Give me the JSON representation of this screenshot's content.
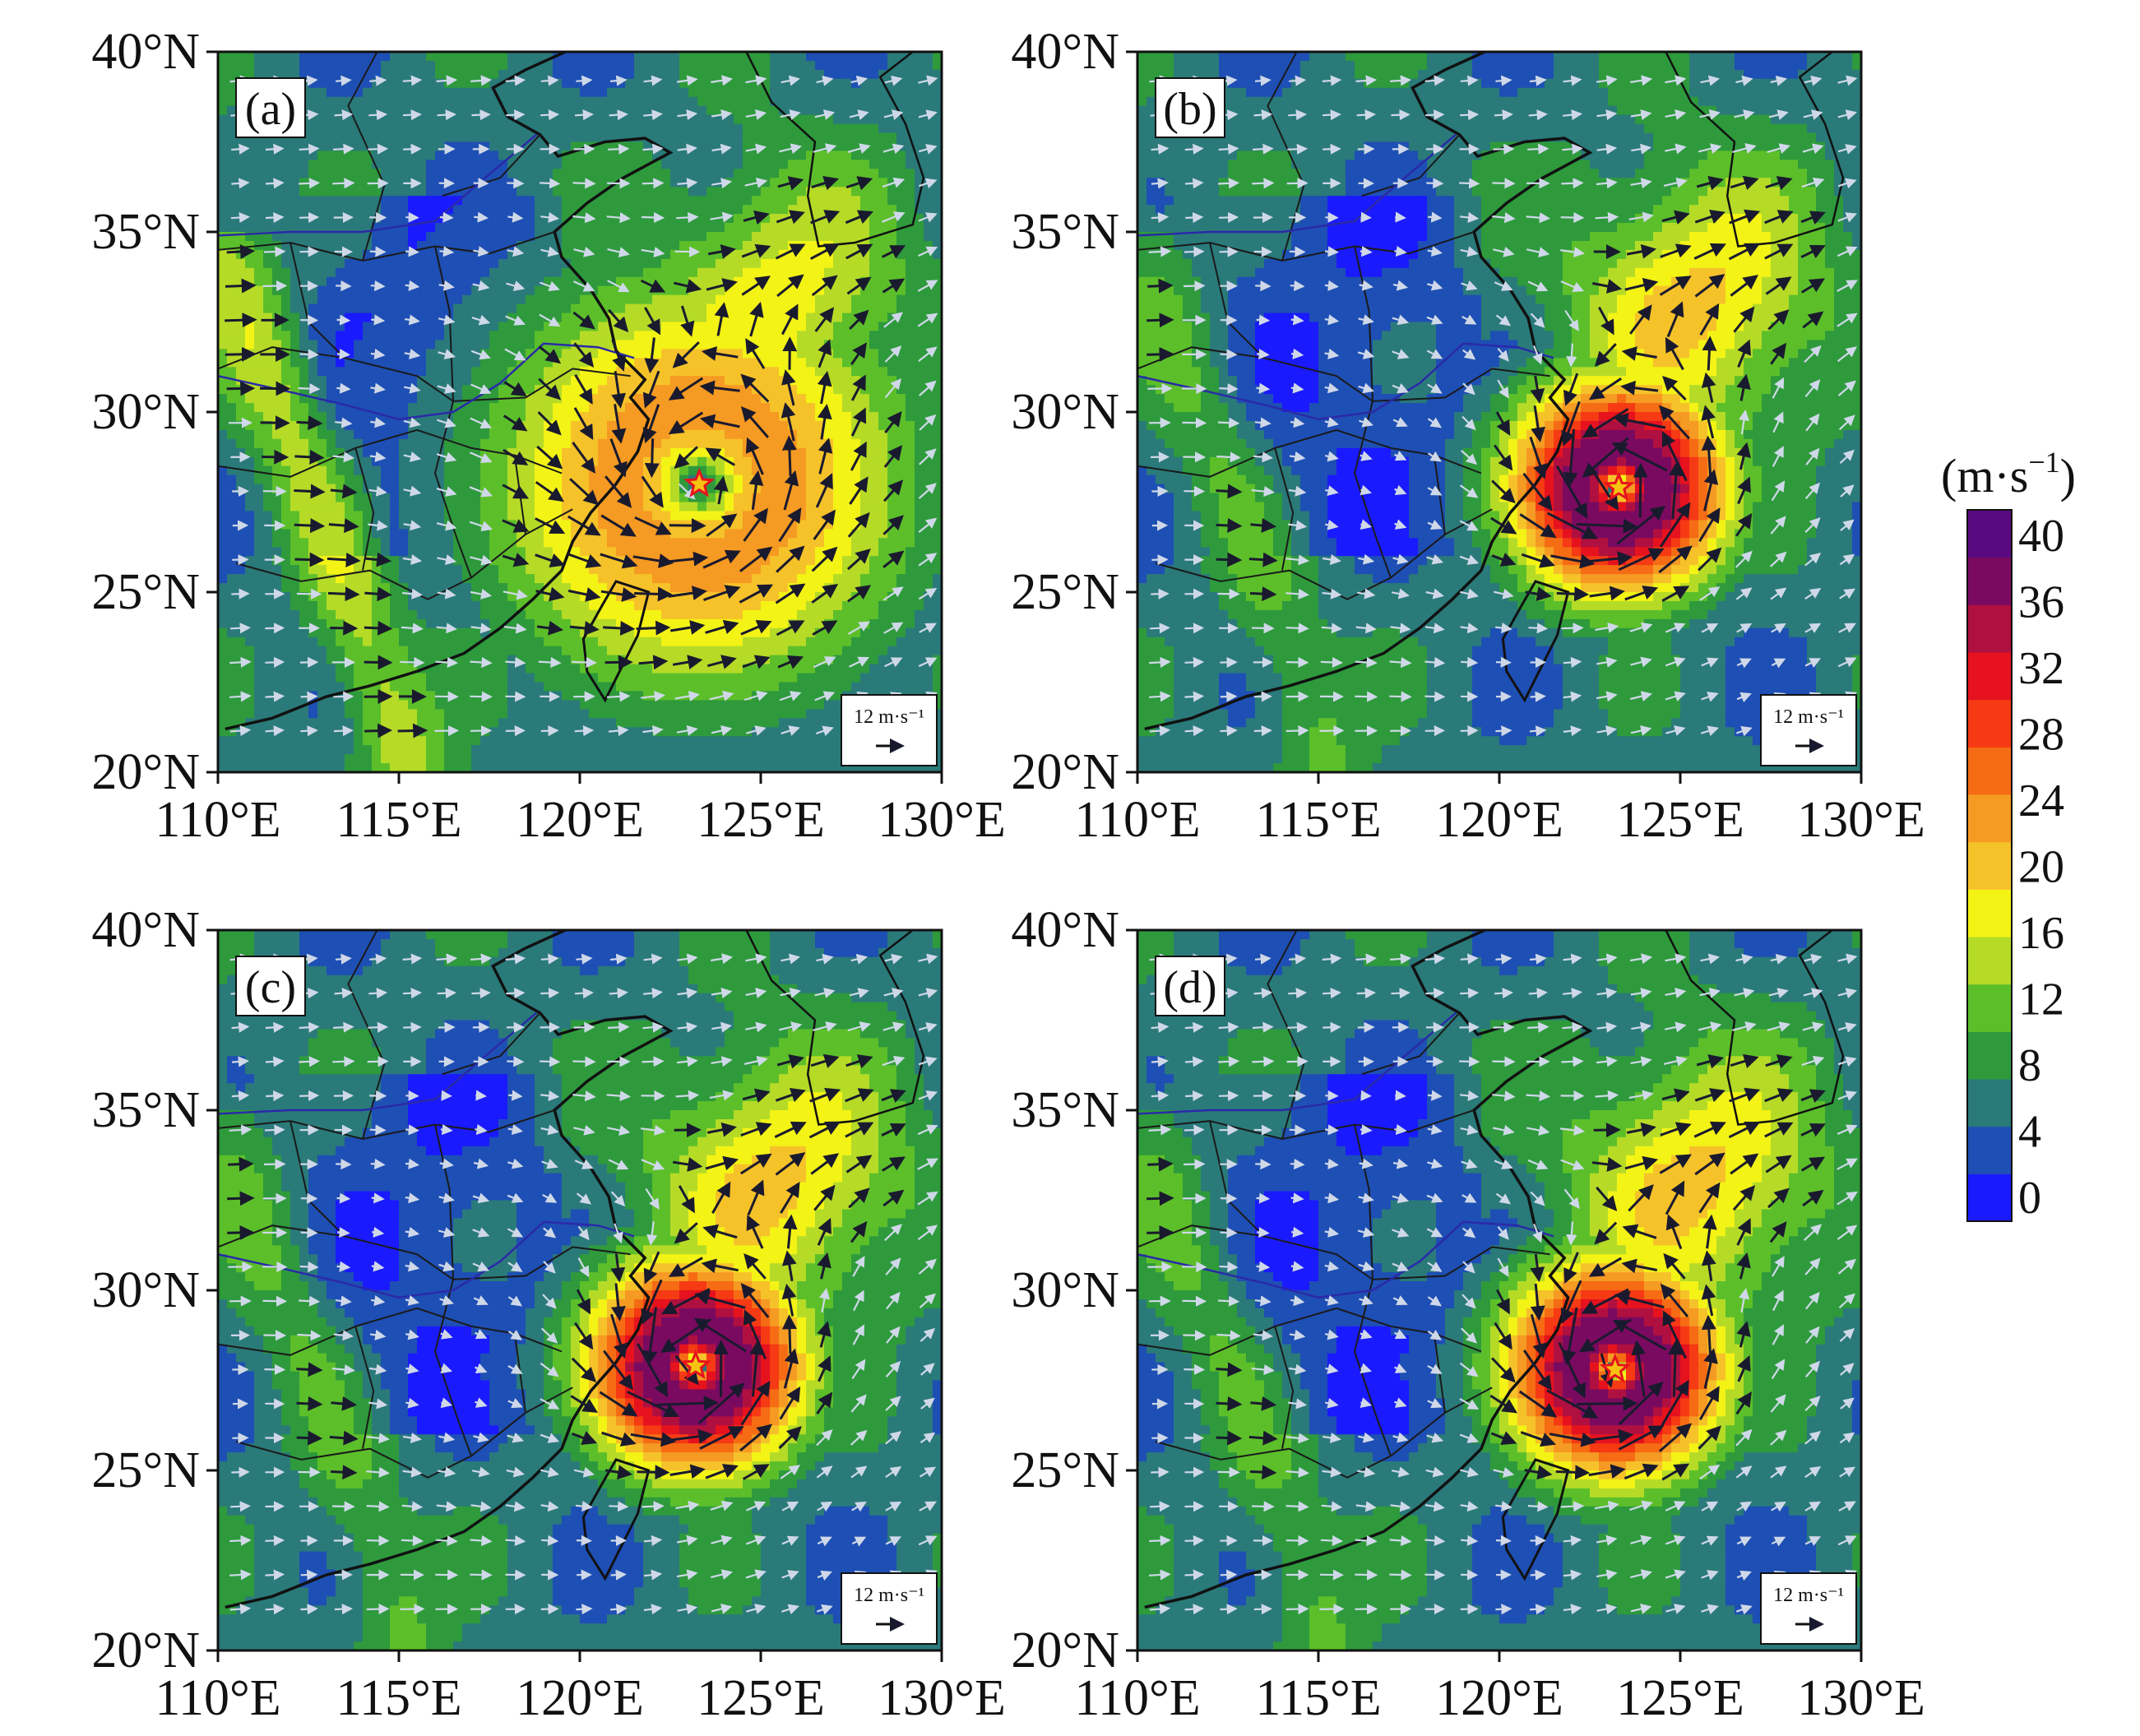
{
  "figure": {
    "colorbar": {
      "unit_prefix": "(m·s",
      "unit_exponent": "−1",
      "unit_suffix": ")",
      "levels": [
        0,
        4,
        8,
        12,
        16,
        20,
        24,
        28,
        32,
        36,
        40
      ],
      "labels": [
        "0",
        "4",
        "8",
        "12",
        "16",
        "20",
        "24",
        "28",
        "32",
        "36",
        "40"
      ],
      "colors": [
        "#1a1aff",
        "#1e4fb4",
        "#2a7a7a",
        "#2e9a3c",
        "#5cbf2a",
        "#b5db27",
        "#f3f316",
        "#f6c22a",
        "#f59a22",
        "#f56c14",
        "#f53a14",
        "#e6121e",
        "#b01040",
        "#7a0a60",
        "#5a0a80"
      ]
    }
  },
  "chart_data": [
    {
      "type": "heatmap",
      "panel_label": "(a)",
      "x_ticks": [
        "110°E",
        "115°E",
        "120°E",
        "125°E",
        "130°E"
      ],
      "y_ticks": [
        "40°N",
        "35°N",
        "30°N",
        "25°N",
        "20°N"
      ],
      "lon_range": [
        110,
        130
      ],
      "lat_range": [
        20,
        40
      ],
      "cyclone_center": {
        "lon": 123.3,
        "lat": 28.0
      },
      "max_wind": 24,
      "reference_vector": {
        "label": "12 m·s⁻¹",
        "speed": 12
      }
    },
    {
      "type": "heatmap",
      "panel_label": "(b)",
      "x_ticks": [
        "110°E",
        "115°E",
        "120°E",
        "125°E",
        "130°E"
      ],
      "y_ticks": [
        "40°N",
        "35°N",
        "30°N",
        "25°N",
        "20°N"
      ],
      "lon_range": [
        110,
        130
      ],
      "lat_range": [
        20,
        40
      ],
      "cyclone_center": {
        "lon": 123.3,
        "lat": 27.9
      },
      "max_wind": 40,
      "reference_vector": {
        "label": "12 m·s⁻¹",
        "speed": 12
      }
    },
    {
      "type": "heatmap",
      "panel_label": "(c)",
      "x_ticks": [
        "110°E",
        "115°E",
        "120°E",
        "125°E",
        "130°E"
      ],
      "y_ticks": [
        "40°N",
        "35°N",
        "30°N",
        "25°N",
        "20°N"
      ],
      "lon_range": [
        110,
        130
      ],
      "lat_range": [
        20,
        40
      ],
      "cyclone_center": {
        "lon": 123.2,
        "lat": 27.9
      },
      "max_wind": 40,
      "reference_vector": {
        "label": "12 m·s⁻¹",
        "speed": 12
      }
    },
    {
      "type": "heatmap",
      "panel_label": "(d)",
      "x_ticks": [
        "110°E",
        "115°E",
        "120°E",
        "125°E",
        "130°E"
      ],
      "y_ticks": [
        "40°N",
        "35°N",
        "30°N",
        "25°N",
        "20°N"
      ],
      "lon_range": [
        110,
        130
      ],
      "lat_range": [
        20,
        40
      ],
      "cyclone_center": {
        "lon": 123.2,
        "lat": 27.8
      },
      "max_wind": 40,
      "reference_vector": {
        "label": "12 m·s⁻¹",
        "speed": 12
      }
    }
  ]
}
